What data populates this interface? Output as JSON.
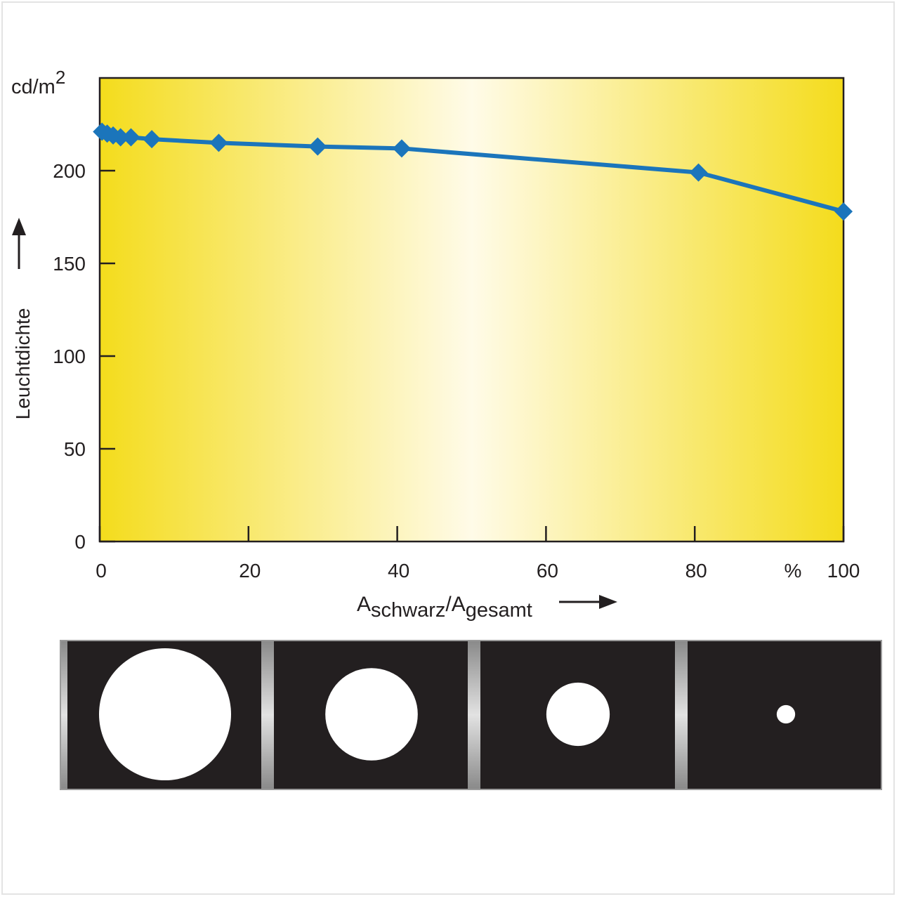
{
  "chart_data": {
    "type": "line",
    "title": "",
    "ylabel": "Leuchtdichte",
    "yunit_base": "cd/m",
    "yunit_exp": "2",
    "xlabel_main": "A",
    "xlabel_sub1": "schwarz",
    "xlabel_sep": "/A",
    "xlabel_sub2": "gesamt",
    "xunit": "%",
    "xlim": [
      0,
      100
    ],
    "ylim": [
      0,
      250
    ],
    "xticks": [
      0,
      20,
      40,
      60,
      80,
      100
    ],
    "xtick_labels": [
      "0",
      "20",
      "40",
      "60",
      "80",
      "100"
    ],
    "yticks": [
      0,
      50,
      100,
      150,
      200
    ],
    "ytick_labels": [
      "0",
      "50",
      "100",
      "150",
      "200"
    ],
    "grid": false,
    "line_color": "#1b75bb",
    "background_gradient": [
      "#f4dc1c",
      "#fffbe8",
      "#f4dc1c"
    ],
    "series": [
      {
        "x": [
          0.3,
          1,
          1.8,
          2.8,
          4.2,
          7,
          16,
          29.3,
          40.6,
          80.5,
          100
        ],
        "y": [
          221,
          220,
          219,
          218,
          218,
          217,
          215,
          213,
          212,
          199,
          178
        ]
      }
    ]
  },
  "pattern_strip": {
    "circle_sizes": [
      1.0,
      0.7,
      0.48,
      0.14
    ]
  }
}
